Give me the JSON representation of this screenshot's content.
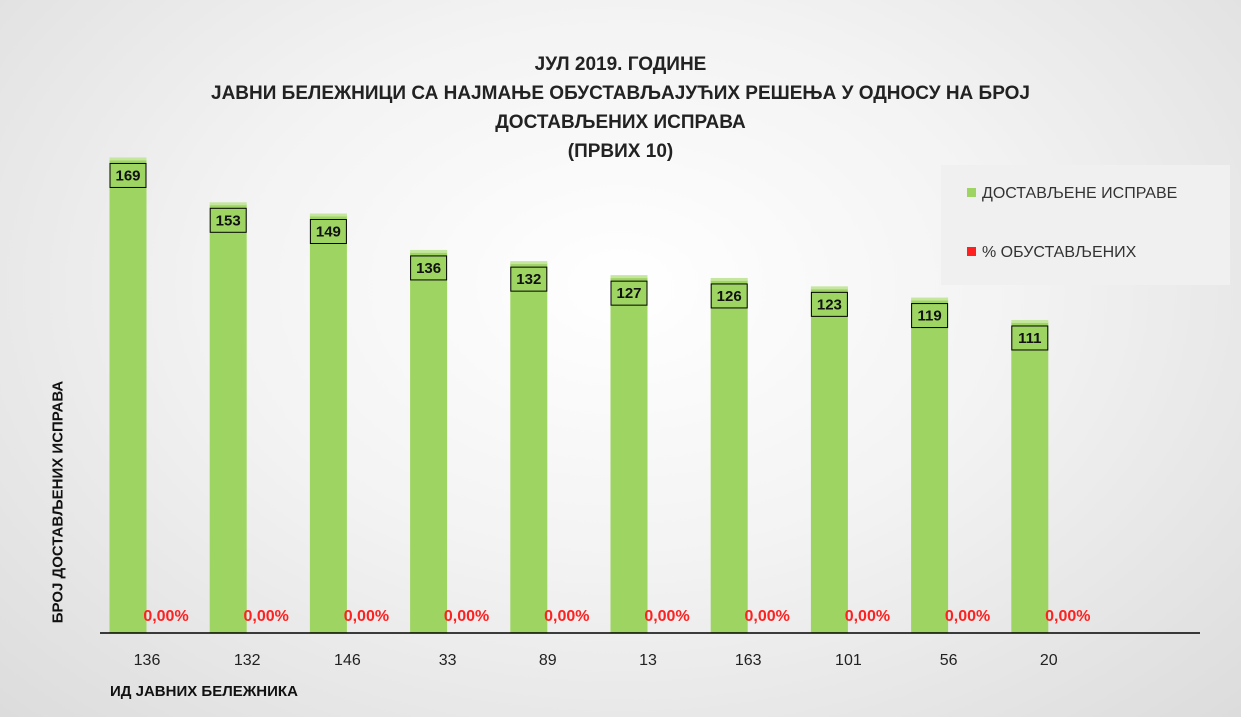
{
  "chart_data": {
    "type": "bar",
    "title_lines": [
      "ЈУЛ 2019. ГОДИНЕ",
      "ЈАВНИ БЕЛЕЖНИЦИ СА НАЈМАЊЕ ОБУСТАВЉАЈУЋИХ РЕШЕЊА У ОДНОСУ НА БРОЈ",
      "ДОСТАВЉЕНИХ ИСПРАВА",
      "(ПРВИХ 10)"
    ],
    "xlabel": "ИД ЈАВНИХ БЕЛЕЖНИКА",
    "ylabel": "БРОЈ ДОСТАВЉЕНИХ ИСПРАВА",
    "categories": [
      "136",
      "132",
      "146",
      "33",
      "89",
      "13",
      "163",
      "101",
      "56",
      "20"
    ],
    "series": [
      {
        "name": "ДОСТАВЉЕНЕ ИСПРАВЕ",
        "values": [
          169,
          153,
          149,
          136,
          132,
          127,
          126,
          123,
          119,
          111
        ],
        "labels": [
          "169",
          "153",
          "149",
          "136",
          "132",
          "127",
          "126",
          "123",
          "119",
          "111"
        ],
        "color": "#9ed462"
      },
      {
        "name": "% ОБУСТАВЉЕНИХ",
        "values": [
          0,
          0,
          0,
          0,
          0,
          0,
          0,
          0,
          0,
          0
        ],
        "labels": [
          "0,00%",
          "0,00%",
          "0,00%",
          "0,00%",
          "0,00%",
          "0,00%",
          "0,00%",
          "0,00%",
          "0,00%",
          "0,00%"
        ],
        "color": "#ff2020"
      }
    ],
    "ylim": [
      0,
      175
    ],
    "legend_position": "top-right",
    "grid": false
  }
}
